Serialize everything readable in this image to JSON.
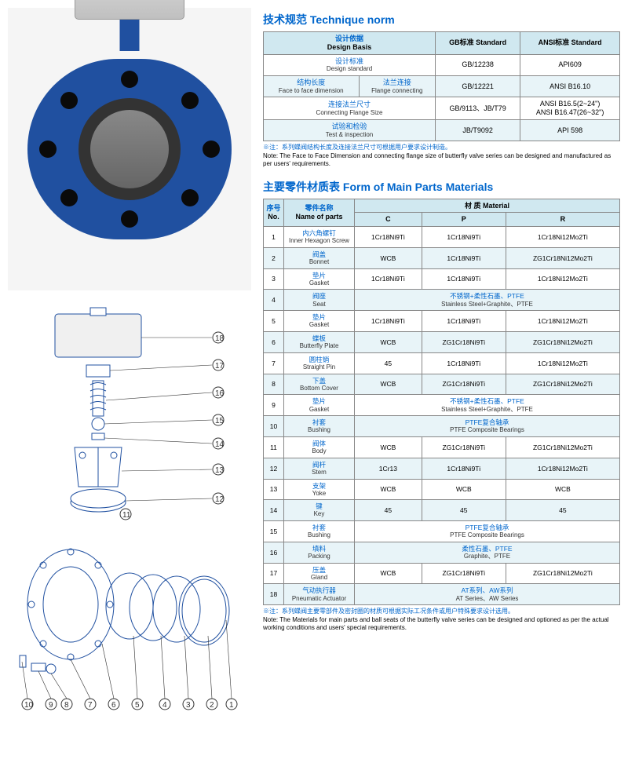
{
  "titles": {
    "technique_cn": "技术规范",
    "technique_en": "Technique norm",
    "materials_cn": "主要零件材质表",
    "materials_en": "Form of Main Parts Materials"
  },
  "technique_table": {
    "headers": {
      "design_basis_cn": "设计依据",
      "design_basis_en": "Design Basis",
      "gb_cn": "GB标准",
      "gb_en": "Standard",
      "ansi_cn": "ANSI标准",
      "ansi_en": "Standard"
    },
    "rows": [
      {
        "label_cn": "设计标准",
        "label_en": "Design standard",
        "gb": "GB/12238",
        "ansi": "API609"
      },
      {
        "label_cn1": "结构长度",
        "label_en1": "Face to face dimension",
        "label_cn2": "法兰连接",
        "label_en2": "Flange connecting",
        "gb": "GB/12221",
        "ansi": "ANSI B16.10"
      },
      {
        "label_cn": "连接法兰尺寸",
        "label_en": "Connecting Flange Size",
        "gb": "GB/9113、JB/T79",
        "ansi": "ANSI B16.5(2~24\")\nANSI B16.47(26~32\")"
      },
      {
        "label_cn": "试验和检验",
        "label_en": "Test & inspection",
        "gb": "JB/T9092",
        "ansi": "API 598"
      }
    ]
  },
  "note1_cn": "※注：系列蝶阀结构长度及连接法兰尺寸可根据用户要求设计制造。",
  "note1_en": "Note: The Face to Face Dimension and connecting flange size of butterfly valve series can be designed and manufactured as per users' requirements.",
  "materials_table": {
    "headers": {
      "no_cn": "序号",
      "no_en": "No.",
      "name_cn": "零件名称",
      "name_en": "Name of parts",
      "material_cn": "材 质",
      "material_en": "Material",
      "c": "C",
      "p": "P",
      "r": "R"
    },
    "rows": [
      {
        "no": "1",
        "name_cn": "内六角螺钉",
        "name_en": "Inner Hexagon Screw",
        "c": "1Cr18Ni9Ti",
        "p": "1Cr18Ni9Ti",
        "r": "1Cr18Ni12Mo2Ti"
      },
      {
        "no": "2",
        "name_cn": "阀盖",
        "name_en": "Bonnet",
        "c": "WCB",
        "p": "1Cr18Ni9Ti",
        "r": "ZG1Cr18Ni12Mo2Ti"
      },
      {
        "no": "3",
        "name_cn": "垫片",
        "name_en": "Gasket",
        "c": "1Cr18Ni9Ti",
        "p": "1Cr18Ni9Ti",
        "r": "1Cr18Ni12Mo2Ti"
      },
      {
        "no": "4",
        "name_cn": "阀座",
        "name_en": "Seat",
        "merged_cn": "不锈钢+柔性石墨、PTFE",
        "merged_en": "Stainless Steel+Graphite、PTFE"
      },
      {
        "no": "5",
        "name_cn": "垫片",
        "name_en": "Gasket",
        "c": "1Cr18Ni9Ti",
        "p": "1Cr18Ni9Ti",
        "r": "1Cr18Ni12Mo2Ti"
      },
      {
        "no": "6",
        "name_cn": "蝶板",
        "name_en": "Butterfly Plate",
        "c": "WCB",
        "p": "ZG1Cr18Ni9Ti",
        "r": "ZG1Cr18Ni12Mo2Ti"
      },
      {
        "no": "7",
        "name_cn": "圆柱销",
        "name_en": "Straight Pin",
        "c": "45",
        "p": "1Cr18Ni9Ti",
        "r": "1Cr18Ni12Mo2Ti"
      },
      {
        "no": "8",
        "name_cn": "下盖",
        "name_en": "Bottom Cover",
        "c": "WCB",
        "p": "ZG1Cr18Ni9Ti",
        "r": "ZG1Cr18Ni12Mo2Ti"
      },
      {
        "no": "9",
        "name_cn": "垫片",
        "name_en": "Gasket",
        "merged_cn": "不锈钢+柔性石墨、PTFE",
        "merged_en": "Stainless Steel+Graphite、PTFE"
      },
      {
        "no": "10",
        "name_cn": "衬套",
        "name_en": "Bushing",
        "merged_cn": "PTFE复合轴承",
        "merged_en": "PTFE Composite Bearings"
      },
      {
        "no": "11",
        "name_cn": "阀体",
        "name_en": "Body",
        "c": "WCB",
        "p": "ZG1Cr18Ni9Ti",
        "r": "ZG1Cr18Ni12Mo2Ti"
      },
      {
        "no": "12",
        "name_cn": "阀杆",
        "name_en": "Stem",
        "c": "1Cr13",
        "p": "1Cr18Ni9Ti",
        "r": "1Cr18Ni12Mo2Ti"
      },
      {
        "no": "13",
        "name_cn": "支架",
        "name_en": "Yoke",
        "c": "WCB",
        "p": "WCB",
        "r": "WCB"
      },
      {
        "no": "14",
        "name_cn": "键",
        "name_en": "Key",
        "c": "45",
        "p": "45",
        "r": "45"
      },
      {
        "no": "15",
        "name_cn": "衬套",
        "name_en": "Bushing",
        "merged_cn": "PTFE复合轴承",
        "merged_en": "PTFE Composite Bearings"
      },
      {
        "no": "16",
        "name_cn": "填料",
        "name_en": "Packing",
        "merged_cn": "柔性石墨、PTFE",
        "merged_en": "Graphite、PTFE"
      },
      {
        "no": "17",
        "name_cn": "压盖",
        "name_en": "Gland",
        "c": "WCB",
        "p": "ZG1Cr18Ni9Ti",
        "r": "ZG1Cr18Ni12Mo2Ti"
      },
      {
        "no": "18",
        "name_cn": "气动执行器",
        "name_en": "Pneumatic Actuator",
        "merged_cn": "AT系列、AW系列",
        "merged_en": "AT Series、AW Series"
      }
    ]
  },
  "note2_cn": "※注：系列蝶阀主要零部件及密封圈的材质可根据实际工况条件或用户特殊要求设计选用。",
  "note2_en": "Note: The Materials for main parts and ball seats of the butterfly valve series can be designed and optioned as per the actual working conditions and users' special requirements.",
  "callouts": [
    "1",
    "2",
    "3",
    "4",
    "5",
    "6",
    "7",
    "8",
    "9",
    "10",
    "11",
    "12",
    "13",
    "14",
    "15",
    "16",
    "17",
    "18"
  ]
}
